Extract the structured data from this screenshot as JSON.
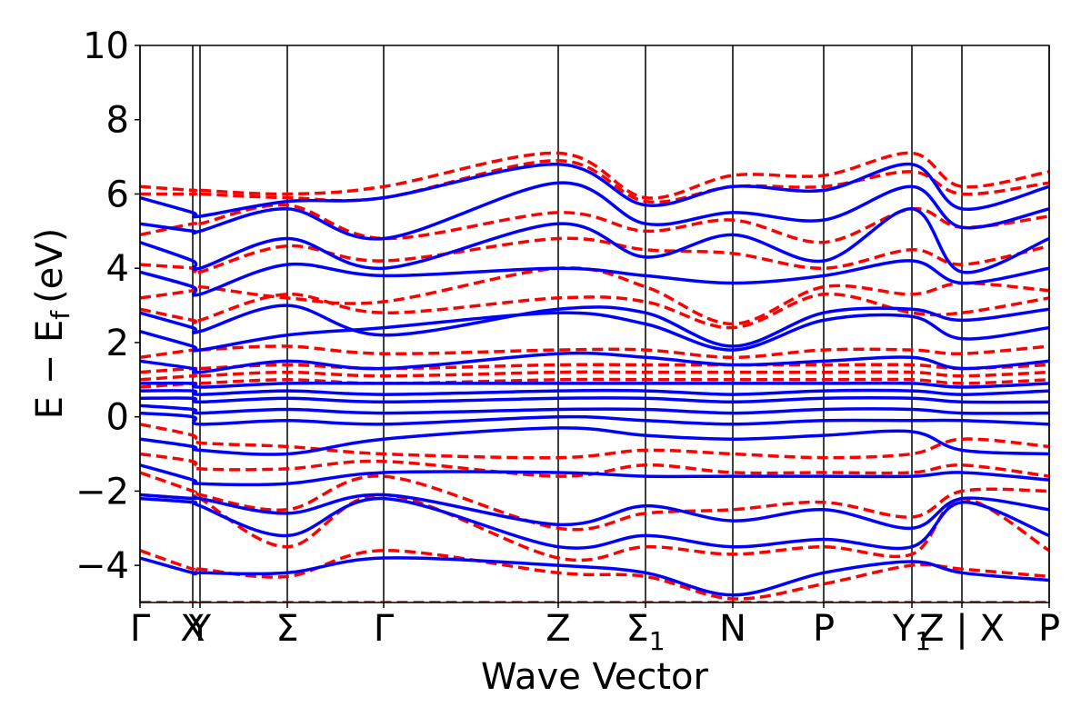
{
  "chart_data": {
    "type": "line",
    "xlabel": "Wave Vector",
    "ylabel_main": "E − E",
    "ylabel_sub": "f",
    "ylabel_unit": "(eV)",
    "ylim": [
      -5,
      10
    ],
    "yticks": [
      -4,
      -2,
      0,
      2,
      4,
      6,
      8,
      10
    ],
    "ytick_labels": [
      "−4",
      "−2",
      "0",
      "2",
      "4",
      "6",
      "8",
      "10"
    ],
    "x_range": [
      0,
      10
    ],
    "kpoints": [
      {
        "label": "Γ",
        "x": 0.0
      },
      {
        "label": "X",
        "x": 0.58
      },
      {
        "label": "Y",
        "x": 0.66
      },
      {
        "label": "Σ",
        "x": 1.62
      },
      {
        "label": "Γ",
        "x": 2.68
      },
      {
        "label": "Z",
        "x": 4.6
      },
      {
        "label": "Σ",
        "sub": "1",
        "x": 5.56
      },
      {
        "label": "N",
        "x": 6.52
      },
      {
        "label": "P",
        "x": 7.52
      },
      {
        "label": "Y",
        "sub": "1",
        "x": 8.49
      },
      {
        "label": "Z | X",
        "x": 9.04
      },
      {
        "label": "P",
        "x": 10.0
      }
    ],
    "series": [
      {
        "style": "dashed",
        "color": "#ff0000",
        "bands": [
          [
            -5.0,
            -5.0,
            -5.0,
            -5.0,
            -5.0,
            -5.0,
            -5.0,
            -5.0,
            -5.0,
            -5.0,
            -5.0,
            -5.0
          ],
          [
            -3.6,
            -4.1,
            -4.1,
            -4.3,
            -3.6,
            -4.2,
            -4.3,
            -4.9,
            -4.5,
            -4.0,
            -4.1,
            -4.3
          ],
          [
            -2.1,
            -2.2,
            -2.2,
            -3.5,
            -2.1,
            -3.8,
            -3.5,
            -3.7,
            -3.5,
            -3.7,
            -2.2,
            -3.6
          ],
          [
            -1.5,
            -2.0,
            -2.1,
            -2.5,
            -1.6,
            -3.0,
            -2.6,
            -2.5,
            -2.3,
            -2.7,
            -2.0,
            -2.0
          ],
          [
            -1.0,
            -1.2,
            -1.4,
            -1.4,
            -1.2,
            -1.6,
            -1.3,
            -1.5,
            -1.5,
            -1.5,
            -1.3,
            -1.6
          ],
          [
            -0.2,
            -0.5,
            -0.7,
            -0.8,
            -1.0,
            -1.1,
            -0.9,
            -1.0,
            -1.1,
            -1.0,
            -0.6,
            -0.8
          ],
          [
            0.8,
            0.9,
            0.9,
            1.0,
            0.9,
            1.0,
            1.0,
            1.0,
            1.0,
            1.0,
            0.9,
            1.0
          ],
          [
            1.0,
            1.1,
            1.1,
            1.2,
            1.1,
            1.2,
            1.2,
            1.2,
            1.2,
            1.2,
            1.1,
            1.2
          ],
          [
            1.2,
            1.3,
            1.3,
            1.4,
            1.3,
            1.4,
            1.4,
            1.4,
            1.4,
            1.4,
            1.3,
            1.4
          ],
          [
            1.6,
            1.8,
            1.8,
            1.9,
            1.7,
            1.8,
            1.8,
            1.6,
            1.8,
            1.8,
            1.7,
            1.9
          ],
          [
            2.9,
            2.6,
            2.6,
            3.3,
            2.8,
            3.2,
            3.1,
            2.4,
            3.3,
            2.8,
            2.8,
            3.2
          ],
          [
            3.2,
            3.4,
            3.5,
            3.2,
            3.1,
            4.0,
            3.5,
            2.5,
            3.5,
            3.3,
            3.6,
            3.4
          ],
          [
            4.1,
            4.0,
            3.9,
            4.6,
            4.2,
            4.8,
            4.5,
            4.4,
            4.0,
            4.5,
            4.1,
            4.6
          ],
          [
            4.9,
            5.2,
            5.2,
            5.7,
            4.8,
            5.5,
            5.0,
            5.3,
            4.7,
            5.6,
            5.1,
            5.4
          ],
          [
            6.0,
            6.0,
            6.0,
            5.9,
            5.9,
            6.9,
            5.8,
            6.2,
            6.2,
            6.6,
            6.0,
            6.3
          ],
          [
            6.2,
            6.1,
            6.1,
            6.0,
            6.2,
            7.1,
            5.9,
            6.5,
            6.5,
            7.1,
            6.2,
            6.6
          ]
        ]
      },
      {
        "style": "solid",
        "color": "#0000ff",
        "bands": [
          [
            -3.8,
            -4.2,
            -4.2,
            -4.2,
            -3.8,
            -4.0,
            -4.2,
            -4.8,
            -4.2,
            -3.9,
            -4.2,
            -4.4
          ],
          [
            -2.2,
            -2.3,
            -2.4,
            -3.2,
            -2.2,
            -3.5,
            -3.2,
            -3.5,
            -3.3,
            -3.5,
            -2.3,
            -3.2
          ],
          [
            -2.1,
            -2.2,
            -2.2,
            -2.6,
            -2.1,
            -2.9,
            -2.4,
            -2.8,
            -2.5,
            -3.0,
            -2.2,
            -2.5
          ],
          [
            -1.3,
            -1.7,
            -1.8,
            -1.8,
            -1.5,
            -1.5,
            -1.6,
            -1.6,
            -1.6,
            -1.6,
            -1.5,
            -1.7
          ],
          [
            -0.6,
            -0.8,
            -0.9,
            -1.0,
            -0.6,
            -0.3,
            -0.5,
            -0.6,
            -0.5,
            -0.4,
            -0.9,
            -1.0
          ],
          [
            0.1,
            0.0,
            -0.2,
            -0.1,
            -0.2,
            0.0,
            -0.1,
            -0.2,
            -0.1,
            -0.1,
            -0.1,
            -0.2
          ],
          [
            0.3,
            0.2,
            0.1,
            0.2,
            0.1,
            0.2,
            0.2,
            0.1,
            0.2,
            0.2,
            0.1,
            0.1
          ],
          [
            0.5,
            0.5,
            0.4,
            0.5,
            0.4,
            0.5,
            0.5,
            0.4,
            0.5,
            0.5,
            0.4,
            0.4
          ],
          [
            0.7,
            0.7,
            0.6,
            0.7,
            0.6,
            0.7,
            0.7,
            0.6,
            0.7,
            0.7,
            0.6,
            0.7
          ],
          [
            0.9,
            0.9,
            0.8,
            0.9,
            0.9,
            0.9,
            0.9,
            0.9,
            0.9,
            0.9,
            0.8,
            0.9
          ],
          [
            1.5,
            1.3,
            1.2,
            1.5,
            1.3,
            1.7,
            1.6,
            1.4,
            1.5,
            1.6,
            1.3,
            1.5
          ],
          [
            2.3,
            1.9,
            1.8,
            2.2,
            2.4,
            2.8,
            2.5,
            1.8,
            2.6,
            2.7,
            2.1,
            2.4
          ],
          [
            2.8,
            2.4,
            2.3,
            3.0,
            2.2,
            2.9,
            2.8,
            1.9,
            2.8,
            2.9,
            2.6,
            2.9
          ],
          [
            3.9,
            3.5,
            3.3,
            4.1,
            3.8,
            4.0,
            3.8,
            3.6,
            3.8,
            4.2,
            3.6,
            4.0
          ],
          [
            4.7,
            4.2,
            4.0,
            4.8,
            4.0,
            5.2,
            4.3,
            4.9,
            4.2,
            5.6,
            3.9,
            4.8
          ],
          [
            5.2,
            5.0,
            5.0,
            5.6,
            4.8,
            6.3,
            5.2,
            5.5,
            5.3,
            6.2,
            5.1,
            5.6
          ],
          [
            5.9,
            5.5,
            5.4,
            5.8,
            5.9,
            6.8,
            5.7,
            6.2,
            6.1,
            6.8,
            5.6,
            6.2
          ]
        ]
      }
    ]
  }
}
